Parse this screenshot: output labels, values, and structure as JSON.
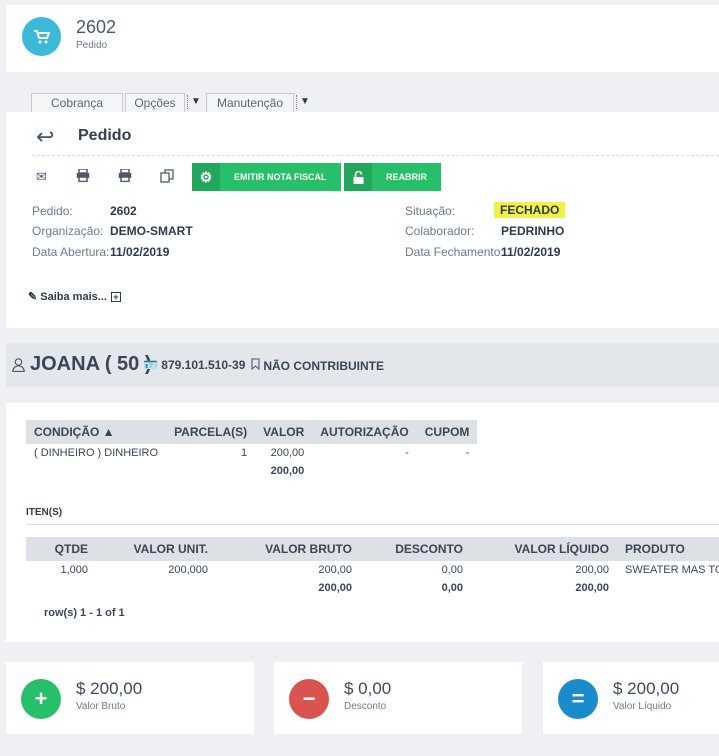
{
  "header": {
    "number": "2602",
    "subtitle": "Pedido",
    "icon": "cart-icon"
  },
  "tabs": [
    "Cobrança",
    "Opções",
    "Manutenção"
  ],
  "main": {
    "title": "Pedido",
    "buttons": {
      "emit": "EMITIR NOTA FISCAL",
      "reopen": "REABRIR"
    },
    "fields": {
      "pedido_label": "Pedido:",
      "pedido_value": "2602",
      "org_label": "Organização:",
      "org_value": "DEMO-SMART",
      "abertura_label": "Data Abertura:",
      "abertura_value": "11/02/2019",
      "situacao_label": "Situação:",
      "situacao_value": "FECHADO",
      "colab_label": "Colaborador:",
      "colab_value": "PEDRINHO",
      "fech_label": "Data Fechamento:",
      "fech_value": "11/02/2019"
    },
    "saiba": "Saiba mais...",
    "highlight_color": "#f2f246"
  },
  "customer": {
    "name": "JOANA ( 50 )",
    "doc": "879.101.510-39",
    "contrib": "NÃO CONTRIBUINTE"
  },
  "payment": {
    "headers": [
      "CONDIÇÃO ▲",
      "PARCELA(S)",
      "VALOR",
      "AUTORIZAÇÃO",
      "CUPOM"
    ],
    "row": [
      "( DINHEIRO ) DINHEIRO",
      "1",
      "200,00",
      "-",
      "-"
    ],
    "total": "200,00"
  },
  "items": {
    "label": "ITEN(S)",
    "headers": [
      "QTDE",
      "VALOR UNIT.",
      "VALOR BRUTO",
      "DESCONTO",
      "VALOR LÍQUIDO",
      "PRODUTO"
    ],
    "row": [
      "1,000",
      "200,000",
      "200,00",
      "0,00",
      "200,00",
      "SWEATER MAS TOMM"
    ],
    "totals": [
      "200,00",
      "0,00",
      "200,00"
    ],
    "rows_info": "row(s) 1 - 1 of 1"
  },
  "summary": [
    {
      "amount": "$ 200,00",
      "label": "Valor Bruto",
      "color": "#27c068",
      "symbol": "+"
    },
    {
      "amount": "$ 0,00",
      "label": "Desconto",
      "color": "#d9534f",
      "symbol": "−"
    },
    {
      "amount": "$ 200,00",
      "label": "Valor Líquido",
      "color": "#1a8ccc",
      "symbol": "="
    }
  ]
}
